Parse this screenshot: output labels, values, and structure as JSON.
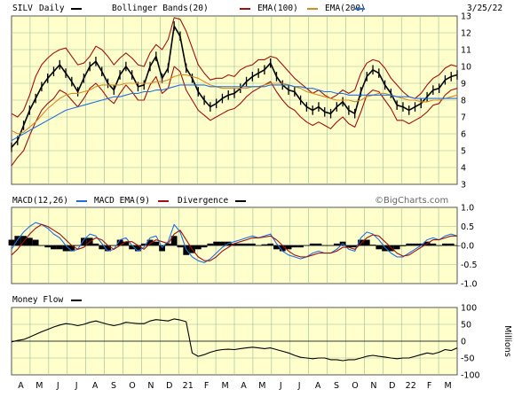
{
  "chart_data": [
    {
      "type": "line",
      "panel": "price",
      "header": {
        "symbol": "SILV",
        "period": "Daily",
        "indicators": [
          "Bollinger Bands(20)",
          "EMA(100)",
          "EMA(200)"
        ],
        "date": "3/25/22"
      },
      "colors": {
        "price": "#000000",
        "bollinger": "#a01010",
        "ema100": "#d88a1a",
        "ema200": "#1f6fe0",
        "plot_bg": "#ffffcc",
        "grid": "#99bb99"
      },
      "ylim": [
        3,
        13
      ],
      "yticks": [
        3,
        4,
        5,
        6,
        7,
        8,
        9,
        10,
        11,
        12,
        13
      ],
      "grid": true,
      "series": [
        {
          "key": "price",
          "values": [
            5.2,
            5.6,
            6.5,
            7.4,
            8.1,
            8.8,
            9.3,
            9.7,
            10.1,
            9.6,
            9.1,
            8.5,
            9.3,
            10.0,
            10.3,
            9.7,
            9.0,
            8.6,
            9.5,
            10.0,
            9.5,
            8.8,
            8.9,
            10.0,
            10.6,
            9.3,
            9.9,
            12.4,
            11.8,
            9.9,
            9.3,
            8.5,
            8.0,
            7.6,
            7.8,
            8.1,
            8.3,
            8.4,
            8.7,
            9.1,
            9.4,
            9.6,
            9.8,
            10.2,
            9.4,
            8.9,
            8.6,
            8.5,
            8.0,
            7.6,
            7.4,
            7.6,
            7.3,
            7.2,
            7.6,
            7.9,
            7.4,
            7.2,
            8.5,
            9.4,
            9.8,
            9.6,
            8.9,
            8.4,
            7.7,
            7.6,
            7.4,
            7.6,
            7.8,
            8.2,
            8.6,
            8.7,
            9.2,
            9.4,
            9.5
          ]
        },
        {
          "key": "bollinger_upper",
          "values": [
            7.2,
            7.0,
            7.4,
            8.3,
            9.4,
            10.1,
            10.5,
            10.8,
            11.0,
            11.1,
            10.6,
            10.1,
            10.2,
            10.6,
            11.2,
            11.0,
            10.6,
            10.1,
            10.5,
            10.8,
            10.5,
            10.1,
            10.0,
            10.8,
            11.3,
            11.0,
            11.6,
            12.9,
            12.8,
            12.1,
            11.1,
            10.1,
            9.6,
            9.2,
            9.3,
            9.3,
            9.5,
            9.4,
            9.8,
            10.0,
            10.1,
            10.4,
            10.4,
            10.6,
            10.5,
            10.1,
            9.7,
            9.3,
            9.0,
            8.7,
            8.4,
            8.6,
            8.3,
            8.1,
            8.3,
            8.6,
            8.4,
            8.6,
            9.6,
            10.2,
            10.4,
            10.3,
            9.9,
            9.3,
            8.9,
            8.5,
            8.2,
            8.1,
            8.4,
            8.9,
            9.3,
            9.5,
            9.9,
            10.1,
            10.0
          ]
        },
        {
          "key": "bollinger_lower",
          "values": [
            4.1,
            4.6,
            5.0,
            5.9,
            6.7,
            7.4,
            7.8,
            8.1,
            8.6,
            8.4,
            8.0,
            7.6,
            8.1,
            8.7,
            9.0,
            8.6,
            8.1,
            7.8,
            8.4,
            8.9,
            8.5,
            8.0,
            8.0,
            8.9,
            9.4,
            8.4,
            8.7,
            10.0,
            9.7,
            8.6,
            8.0,
            7.4,
            7.1,
            6.8,
            7.0,
            7.2,
            7.4,
            7.5,
            7.8,
            8.2,
            8.5,
            8.7,
            8.9,
            9.1,
            8.5,
            8.0,
            7.6,
            7.4,
            7.0,
            6.7,
            6.5,
            6.7,
            6.5,
            6.3,
            6.7,
            7.0,
            6.6,
            6.4,
            7.3,
            8.3,
            8.6,
            8.5,
            8.0,
            7.5,
            6.8,
            6.8,
            6.6,
            6.8,
            7.0,
            7.3,
            7.7,
            7.8,
            8.3,
            8.6,
            8.7
          ]
        },
        {
          "key": "ema100",
          "values": [
            6.2,
            6.0,
            6.1,
            6.4,
            6.7,
            7.1,
            7.5,
            7.8,
            8.1,
            8.3,
            8.4,
            8.4,
            8.5,
            8.6,
            8.8,
            8.9,
            8.9,
            8.9,
            8.9,
            9.0,
            9.0,
            9.0,
            9.0,
            9.0,
            9.1,
            9.1,
            9.2,
            9.4,
            9.5,
            9.5,
            9.4,
            9.3,
            9.1,
            8.9,
            8.8,
            8.7,
            8.7,
            8.7,
            8.7,
            8.7,
            8.8,
            8.8,
            8.9,
            9.0,
            9.0,
            9.0,
            8.9,
            8.8,
            8.7,
            8.5,
            8.4,
            8.3,
            8.2,
            8.1,
            8.0,
            8.0,
            8.0,
            7.9,
            8.0,
            8.2,
            8.3,
            8.4,
            8.4,
            8.3,
            8.2,
            8.1,
            8.0,
            8.0,
            7.9,
            7.9,
            8.0,
            8.0,
            8.1,
            8.2,
            8.3
          ]
        },
        {
          "key": "ema200",
          "values": [
            5.6,
            5.8,
            6.0,
            6.2,
            6.4,
            6.6,
            6.8,
            7.0,
            7.2,
            7.4,
            7.5,
            7.6,
            7.7,
            7.8,
            7.9,
            8.0,
            8.1,
            8.2,
            8.2,
            8.3,
            8.4,
            8.4,
            8.5,
            8.5,
            8.6,
            8.6,
            8.7,
            8.8,
            8.9,
            8.9,
            8.9,
            8.9,
            8.9,
            8.8,
            8.8,
            8.8,
            8.8,
            8.8,
            8.8,
            8.8,
            8.8,
            8.8,
            8.8,
            8.9,
            8.9,
            8.9,
            8.9,
            8.8,
            8.8,
            8.7,
            8.7,
            8.6,
            8.5,
            8.5,
            8.4,
            8.4,
            8.3,
            8.3,
            8.3,
            8.3,
            8.3,
            8.3,
            8.3,
            8.3,
            8.2,
            8.2,
            8.2,
            8.1,
            8.1,
            8.1,
            8.1,
            8.1,
            8.1,
            8.1,
            8.1
          ]
        }
      ],
      "watermark": ""
    },
    {
      "type": "line",
      "panel": "macd",
      "header": {
        "label": "MACD(12,26)",
        "signal": "MACD EMA(9)",
        "divergence": "Divergence"
      },
      "colors": {
        "macd": "#1f6fe0",
        "signal": "#a01010",
        "divergence": "#000000"
      },
      "ylim": [
        -1.0,
        1.0
      ],
      "yticks": [
        1.0,
        0.5,
        0.0,
        -0.5,
        -1.0
      ],
      "ytick_labels": [
        "1.0",
        "0.5",
        "0.0",
        "-0.5",
        "-1.0"
      ],
      "grid": true,
      "watermark": "©BigCharts.com",
      "series": [
        {
          "key": "macd",
          "values": [
            -0.1,
            0.15,
            0.35,
            0.5,
            0.6,
            0.55,
            0.45,
            0.3,
            0.2,
            0.0,
            -0.15,
            -0.1,
            0.15,
            0.3,
            0.25,
            0.05,
            -0.15,
            -0.1,
            0.15,
            0.2,
            0.0,
            -0.15,
            -0.05,
            0.2,
            0.25,
            -0.05,
            0.1,
            0.55,
            0.35,
            -0.1,
            -0.3,
            -0.4,
            -0.45,
            -0.35,
            -0.2,
            -0.05,
            0.05,
            0.1,
            0.15,
            0.2,
            0.25,
            0.2,
            0.25,
            0.3,
            0.05,
            -0.15,
            -0.25,
            -0.3,
            -0.35,
            -0.3,
            -0.2,
            -0.15,
            -0.2,
            -0.2,
            -0.1,
            0.05,
            -0.1,
            -0.15,
            0.2,
            0.35,
            0.3,
            0.15,
            -0.05,
            -0.2,
            -0.3,
            -0.3,
            -0.2,
            -0.1,
            0.0,
            0.15,
            0.2,
            0.15,
            0.25,
            0.3,
            0.25
          ]
        },
        {
          "key": "signal",
          "values": [
            -0.25,
            -0.1,
            0.1,
            0.3,
            0.45,
            0.55,
            0.5,
            0.4,
            0.3,
            0.15,
            0.0,
            -0.1,
            -0.05,
            0.1,
            0.2,
            0.15,
            0.0,
            -0.1,
            0.0,
            0.1,
            0.1,
            0.0,
            -0.1,
            0.05,
            0.15,
            0.1,
            0.05,
            0.3,
            0.4,
            0.15,
            -0.1,
            -0.3,
            -0.4,
            -0.4,
            -0.3,
            -0.15,
            -0.05,
            0.05,
            0.1,
            0.15,
            0.2,
            0.2,
            0.22,
            0.25,
            0.15,
            0.0,
            -0.15,
            -0.25,
            -0.3,
            -0.3,
            -0.25,
            -0.2,
            -0.2,
            -0.2,
            -0.15,
            -0.05,
            -0.05,
            -0.1,
            0.05,
            0.2,
            0.28,
            0.25,
            0.1,
            -0.05,
            -0.2,
            -0.28,
            -0.25,
            -0.15,
            -0.05,
            0.05,
            0.15,
            0.15,
            0.2,
            0.25,
            0.25
          ]
        }
      ]
    },
    {
      "type": "line",
      "panel": "moneyflow",
      "header": {
        "label": "Money Flow"
      },
      "colors": {
        "line": "#000000"
      },
      "ylim": [
        -100,
        100
      ],
      "yticks": [
        100,
        50,
        0,
        -50,
        -100
      ],
      "ytick_labels": [
        "100",
        "50",
        "0",
        "-50",
        "-100"
      ],
      "ylabel": "Millions",
      "zero_line": 0,
      "grid": true,
      "series": [
        {
          "key": "money_flow",
          "values": [
            -2,
            2,
            5,
            12,
            20,
            28,
            35,
            42,
            48,
            52,
            50,
            46,
            50,
            56,
            60,
            55,
            50,
            46,
            50,
            56,
            54,
            52,
            52,
            60,
            64,
            62,
            60,
            66,
            63,
            58,
            -35,
            -45,
            -40,
            -33,
            -28,
            -25,
            -24,
            -25,
            -22,
            -20,
            -18,
            -20,
            -22,
            -20,
            -25,
            -30,
            -35,
            -42,
            -48,
            -50,
            -52,
            -50,
            -50,
            -55,
            -55,
            -58,
            -55,
            -55,
            -50,
            -45,
            -42,
            -45,
            -47,
            -50,
            -52,
            -50,
            -50,
            -45,
            -40,
            -35,
            -38,
            -33,
            -25,
            -28,
            -20
          ]
        }
      ]
    }
  ],
  "x_axis": {
    "labels": [
      "A",
      "M",
      "J",
      "J",
      "A",
      "S",
      "O",
      "N",
      "D",
      "21",
      "F",
      "M",
      "A",
      "M",
      "J",
      "J",
      "A",
      "S",
      "O",
      "N",
      "D",
      "22",
      "F",
      "M"
    ]
  }
}
